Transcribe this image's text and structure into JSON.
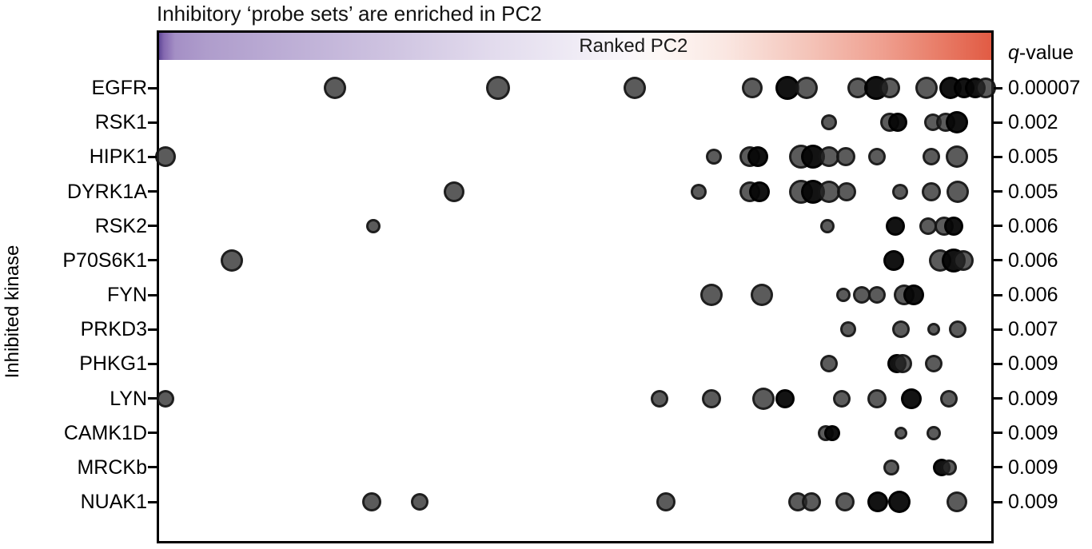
{
  "title": "Inhibitory ‘probe sets’ are enriched in PC2",
  "axis": {
    "x_label": "Ranked PC2",
    "y_label": "Inhibited kinase",
    "q_header_italic": "q",
    "q_header_rest": "-value"
  },
  "colors": {
    "dot_fill": "#2d2d2d",
    "dot_stroke": "#121212",
    "gradient_left_purple": "#5f4796",
    "gradient_mid_white": "#fbf8fa",
    "gradient_right_red": "#e15b44",
    "border": "#000000"
  },
  "chart_data": {
    "type": "scatter",
    "title": "Inhibitory ‘probe sets’ are enriched in PC2",
    "xlabel": "Ranked PC2",
    "ylabel": "Inhibited kinase",
    "right_axis_label": "q-value",
    "x_axis_numeric_ticks": false,
    "x_units": "pixel offset along ranked-PC2 axis, plot interior width 1047",
    "legend": "none",
    "grid": false,
    "dot_format": "[x_px, radius_px, dark_overlap_flag]",
    "rows": [
      {
        "kinase": "EGFR",
        "q_value": "0.00007",
        "dots": [
          [
            223,
            14,
            0
          ],
          [
            427,
            15,
            0
          ],
          [
            598,
            14,
            0
          ],
          [
            745,
            13,
            0
          ],
          [
            789,
            15,
            1
          ],
          [
            813,
            14,
            0
          ],
          [
            877,
            13,
            0
          ],
          [
            900,
            15,
            1
          ],
          [
            917,
            13,
            0
          ],
          [
            963,
            14,
            0
          ],
          [
            993,
            14,
            1
          ],
          [
            1010,
            13,
            1
          ],
          [
            1024,
            13,
            1
          ],
          [
            1037,
            13,
            0
          ]
        ]
      },
      {
        "kinase": "RSK1",
        "q_value": "0.002",
        "dots": [
          [
            841,
            10,
            0
          ],
          [
            917,
            12,
            0
          ],
          [
            927,
            12,
            1
          ],
          [
            971,
            11,
            0
          ],
          [
            987,
            12,
            0
          ],
          [
            1001,
            14,
            1
          ]
        ]
      },
      {
        "kinase": "HIPK1",
        "q_value": "0.005",
        "dots": [
          [
            11,
            13,
            0
          ],
          [
            697,
            10,
            0
          ],
          [
            742,
            13,
            0
          ],
          [
            752,
            13,
            1
          ],
          [
            806,
            15,
            0
          ],
          [
            821,
            15,
            1
          ],
          [
            841,
            13,
            0
          ],
          [
            862,
            12,
            0
          ],
          [
            901,
            11,
            0
          ],
          [
            969,
            11,
            0
          ],
          [
            1001,
            14,
            0
          ]
        ]
      },
      {
        "kinase": "DYRK1A",
        "q_value": "0.005",
        "dots": [
          [
            372,
            13,
            0
          ],
          [
            678,
            10,
            0
          ],
          [
            742,
            13,
            0
          ],
          [
            754,
            13,
            1
          ],
          [
            806,
            15,
            0
          ],
          [
            821,
            15,
            1
          ],
          [
            841,
            14,
            0
          ],
          [
            863,
            12,
            0
          ],
          [
            930,
            10,
            0
          ],
          [
            969,
            12,
            0
          ],
          [
            1002,
            14,
            0
          ]
        ]
      },
      {
        "kinase": "RSK2",
        "q_value": "0.006",
        "dots": [
          [
            271,
            9,
            0
          ],
          [
            839,
            9,
            0
          ],
          [
            924,
            12,
            1
          ],
          [
            965,
            11,
            0
          ],
          [
            985,
            12,
            0
          ],
          [
            997,
            12,
            1
          ]
        ]
      },
      {
        "kinase": "P70S6K1",
        "q_value": "0.006",
        "dots": [
          [
            94,
            14,
            0
          ],
          [
            922,
            13,
            1
          ],
          [
            980,
            14,
            0
          ],
          [
            997,
            15,
            1
          ],
          [
            1009,
            13,
            0
          ]
        ]
      },
      {
        "kinase": "FYN",
        "q_value": "0.006",
        "dots": [
          [
            694,
            14,
            0
          ],
          [
            757,
            14,
            0
          ],
          [
            859,
            9,
            0
          ],
          [
            882,
            11,
            0
          ],
          [
            901,
            11,
            0
          ],
          [
            935,
            13,
            0
          ],
          [
            947,
            13,
            1
          ]
        ]
      },
      {
        "kinase": "PRKD3",
        "q_value": "0.007",
        "dots": [
          [
            865,
            10,
            0
          ],
          [
            931,
            11,
            0
          ],
          [
            972,
            8,
            0
          ],
          [
            1002,
            11,
            0
          ]
        ]
      },
      {
        "kinase": "PHKG1",
        "q_value": "0.009",
        "dots": [
          [
            841,
            11,
            0
          ],
          [
            926,
            12,
            1
          ],
          [
            933,
            12,
            0
          ],
          [
            972,
            11,
            0
          ]
        ]
      },
      {
        "kinase": "LYN",
        "q_value": "0.009",
        "dots": [
          [
            11,
            11,
            0
          ],
          [
            629,
            11,
            0
          ],
          [
            694,
            12,
            0
          ],
          [
            759,
            14,
            0
          ],
          [
            786,
            12,
            1
          ],
          [
            857,
            11,
            0
          ],
          [
            901,
            12,
            0
          ],
          [
            944,
            13,
            1
          ],
          [
            991,
            11,
            0
          ]
        ]
      },
      {
        "kinase": "CAMK1D",
        "q_value": "0.009",
        "dots": [
          [
            837,
            10,
            0
          ],
          [
            845,
            10,
            1
          ],
          [
            931,
            8,
            0
          ],
          [
            972,
            9,
            0
          ]
        ]
      },
      {
        "kinase": "MRCKb",
        "q_value": "0.009",
        "dots": [
          [
            919,
            10,
            0
          ],
          [
            982,
            11,
            1
          ],
          [
            991,
            10,
            0
          ]
        ]
      },
      {
        "kinase": "NUAK1",
        "q_value": "0.009",
        "dots": [
          [
            269,
            12,
            0
          ],
          [
            329,
            11,
            0
          ],
          [
            637,
            12,
            0
          ],
          [
            802,
            12,
            0
          ],
          [
            819,
            12,
            0
          ],
          [
            861,
            12,
            0
          ],
          [
            902,
            13,
            1
          ],
          [
            929,
            14,
            1
          ],
          [
            1001,
            13,
            0
          ]
        ]
      }
    ]
  }
}
